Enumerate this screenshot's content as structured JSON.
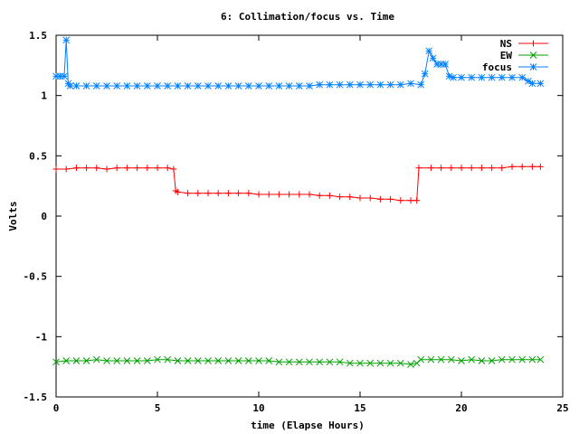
{
  "chart_data": {
    "type": "line",
    "title": "6: Collimation/focus vs. Time",
    "xlabel": "time (Elapse Hours)",
    "ylabel": "Volts",
    "xlim": [
      0,
      25
    ],
    "ylim": [
      -1.5,
      1.5
    ],
    "xticks": [
      0,
      5,
      10,
      15,
      20,
      25
    ],
    "yticks": [
      1.5,
      1,
      0.5,
      0,
      -0.5,
      -1,
      -1.5
    ],
    "xtick_labels": [
      "0",
      "5",
      "10",
      "15",
      "20",
      "25"
    ],
    "ytick_labels": [
      "1.5",
      "1",
      "0.5",
      "0",
      "-0.5",
      "-1",
      "-1.5"
    ],
    "grid": false,
    "legend_position": "top-right",
    "series": [
      {
        "name": "NS",
        "color": "#ff0000",
        "marker": "plus",
        "points": [
          [
            0.0,
            0.39
          ],
          [
            0.5,
            0.39
          ],
          [
            1.0,
            0.4
          ],
          [
            1.5,
            0.4
          ],
          [
            2.0,
            0.4
          ],
          [
            2.5,
            0.39
          ],
          [
            3.0,
            0.4
          ],
          [
            3.5,
            0.4
          ],
          [
            4.0,
            0.4
          ],
          [
            4.5,
            0.4
          ],
          [
            5.0,
            0.4
          ],
          [
            5.5,
            0.4
          ],
          [
            5.8,
            0.39
          ],
          [
            5.9,
            0.21
          ],
          [
            6.0,
            0.2
          ],
          [
            6.5,
            0.19
          ],
          [
            7.0,
            0.19
          ],
          [
            7.5,
            0.19
          ],
          [
            8.0,
            0.19
          ],
          [
            8.5,
            0.19
          ],
          [
            9.0,
            0.19
          ],
          [
            9.5,
            0.19
          ],
          [
            10.0,
            0.18
          ],
          [
            10.5,
            0.18
          ],
          [
            11.0,
            0.18
          ],
          [
            11.5,
            0.18
          ],
          [
            12.0,
            0.18
          ],
          [
            12.5,
            0.18
          ],
          [
            13.0,
            0.17
          ],
          [
            13.5,
            0.17
          ],
          [
            14.0,
            0.16
          ],
          [
            14.5,
            0.16
          ],
          [
            15.0,
            0.15
          ],
          [
            15.5,
            0.15
          ],
          [
            16.0,
            0.14
          ],
          [
            16.5,
            0.14
          ],
          [
            17.0,
            0.13
          ],
          [
            17.5,
            0.13
          ],
          [
            17.8,
            0.13
          ],
          [
            17.9,
            0.4
          ],
          [
            18.5,
            0.4
          ],
          [
            19.0,
            0.4
          ],
          [
            19.5,
            0.4
          ],
          [
            20.0,
            0.4
          ],
          [
            20.5,
            0.4
          ],
          [
            21.0,
            0.4
          ],
          [
            21.5,
            0.4
          ],
          [
            22.0,
            0.4
          ],
          [
            22.5,
            0.41
          ],
          [
            23.0,
            0.41
          ],
          [
            23.5,
            0.41
          ],
          [
            23.9,
            0.41
          ]
        ]
      },
      {
        "name": "EW",
        "color": "#00a000",
        "marker": "cross",
        "points": [
          [
            0.0,
            -1.21
          ],
          [
            0.5,
            -1.2
          ],
          [
            1.0,
            -1.2
          ],
          [
            1.5,
            -1.2
          ],
          [
            2.0,
            -1.19
          ],
          [
            2.5,
            -1.2
          ],
          [
            3.0,
            -1.2
          ],
          [
            3.5,
            -1.2
          ],
          [
            4.0,
            -1.2
          ],
          [
            4.5,
            -1.2
          ],
          [
            5.0,
            -1.19
          ],
          [
            5.5,
            -1.19
          ],
          [
            6.0,
            -1.2
          ],
          [
            6.5,
            -1.2
          ],
          [
            7.0,
            -1.2
          ],
          [
            7.5,
            -1.2
          ],
          [
            8.0,
            -1.2
          ],
          [
            8.5,
            -1.2
          ],
          [
            9.0,
            -1.2
          ],
          [
            9.5,
            -1.2
          ],
          [
            10.0,
            -1.2
          ],
          [
            10.5,
            -1.2
          ],
          [
            11.0,
            -1.21
          ],
          [
            11.5,
            -1.21
          ],
          [
            12.0,
            -1.21
          ],
          [
            12.5,
            -1.21
          ],
          [
            13.0,
            -1.21
          ],
          [
            13.5,
            -1.21
          ],
          [
            14.0,
            -1.21
          ],
          [
            14.5,
            -1.22
          ],
          [
            15.0,
            -1.22
          ],
          [
            15.5,
            -1.22
          ],
          [
            16.0,
            -1.22
          ],
          [
            16.5,
            -1.22
          ],
          [
            17.0,
            -1.22
          ],
          [
            17.5,
            -1.23
          ],
          [
            17.8,
            -1.22
          ],
          [
            18.0,
            -1.19
          ],
          [
            18.5,
            -1.19
          ],
          [
            19.0,
            -1.19
          ],
          [
            19.5,
            -1.19
          ],
          [
            20.0,
            -1.2
          ],
          [
            20.5,
            -1.19
          ],
          [
            21.0,
            -1.2
          ],
          [
            21.5,
            -1.2
          ],
          [
            22.0,
            -1.19
          ],
          [
            22.5,
            -1.19
          ],
          [
            23.0,
            -1.19
          ],
          [
            23.5,
            -1.19
          ],
          [
            23.9,
            -1.19
          ]
        ]
      },
      {
        "name": "focus",
        "color": "#0080ff",
        "marker": "star",
        "points": [
          [
            0.0,
            1.16
          ],
          [
            0.2,
            1.16
          ],
          [
            0.4,
            1.16
          ],
          [
            0.5,
            1.46
          ],
          [
            0.6,
            1.1
          ],
          [
            0.7,
            1.08
          ],
          [
            1.0,
            1.08
          ],
          [
            1.5,
            1.08
          ],
          [
            2.0,
            1.08
          ],
          [
            2.5,
            1.08
          ],
          [
            3.0,
            1.08
          ],
          [
            3.5,
            1.08
          ],
          [
            4.0,
            1.08
          ],
          [
            4.5,
            1.08
          ],
          [
            5.0,
            1.08
          ],
          [
            5.5,
            1.08
          ],
          [
            6.0,
            1.08
          ],
          [
            6.5,
            1.08
          ],
          [
            7.0,
            1.08
          ],
          [
            7.5,
            1.08
          ],
          [
            8.0,
            1.08
          ],
          [
            8.5,
            1.08
          ],
          [
            9.0,
            1.08
          ],
          [
            9.5,
            1.08
          ],
          [
            10.0,
            1.08
          ],
          [
            10.5,
            1.08
          ],
          [
            11.0,
            1.08
          ],
          [
            11.5,
            1.08
          ],
          [
            12.0,
            1.08
          ],
          [
            12.5,
            1.08
          ],
          [
            13.0,
            1.09
          ],
          [
            13.5,
            1.09
          ],
          [
            14.0,
            1.09
          ],
          [
            14.5,
            1.09
          ],
          [
            15.0,
            1.09
          ],
          [
            15.5,
            1.09
          ],
          [
            16.0,
            1.09
          ],
          [
            16.5,
            1.09
          ],
          [
            17.0,
            1.09
          ],
          [
            17.5,
            1.1
          ],
          [
            18.0,
            1.09
          ],
          [
            18.2,
            1.18
          ],
          [
            18.4,
            1.37
          ],
          [
            18.6,
            1.31
          ],
          [
            18.8,
            1.26
          ],
          [
            19.0,
            1.26
          ],
          [
            19.2,
            1.26
          ],
          [
            19.4,
            1.16
          ],
          [
            19.6,
            1.15
          ],
          [
            20.0,
            1.15
          ],
          [
            20.5,
            1.15
          ],
          [
            21.0,
            1.15
          ],
          [
            21.5,
            1.15
          ],
          [
            22.0,
            1.15
          ],
          [
            22.5,
            1.15
          ],
          [
            23.0,
            1.15
          ],
          [
            23.3,
            1.12
          ],
          [
            23.5,
            1.1
          ],
          [
            23.9,
            1.1
          ]
        ]
      }
    ]
  }
}
